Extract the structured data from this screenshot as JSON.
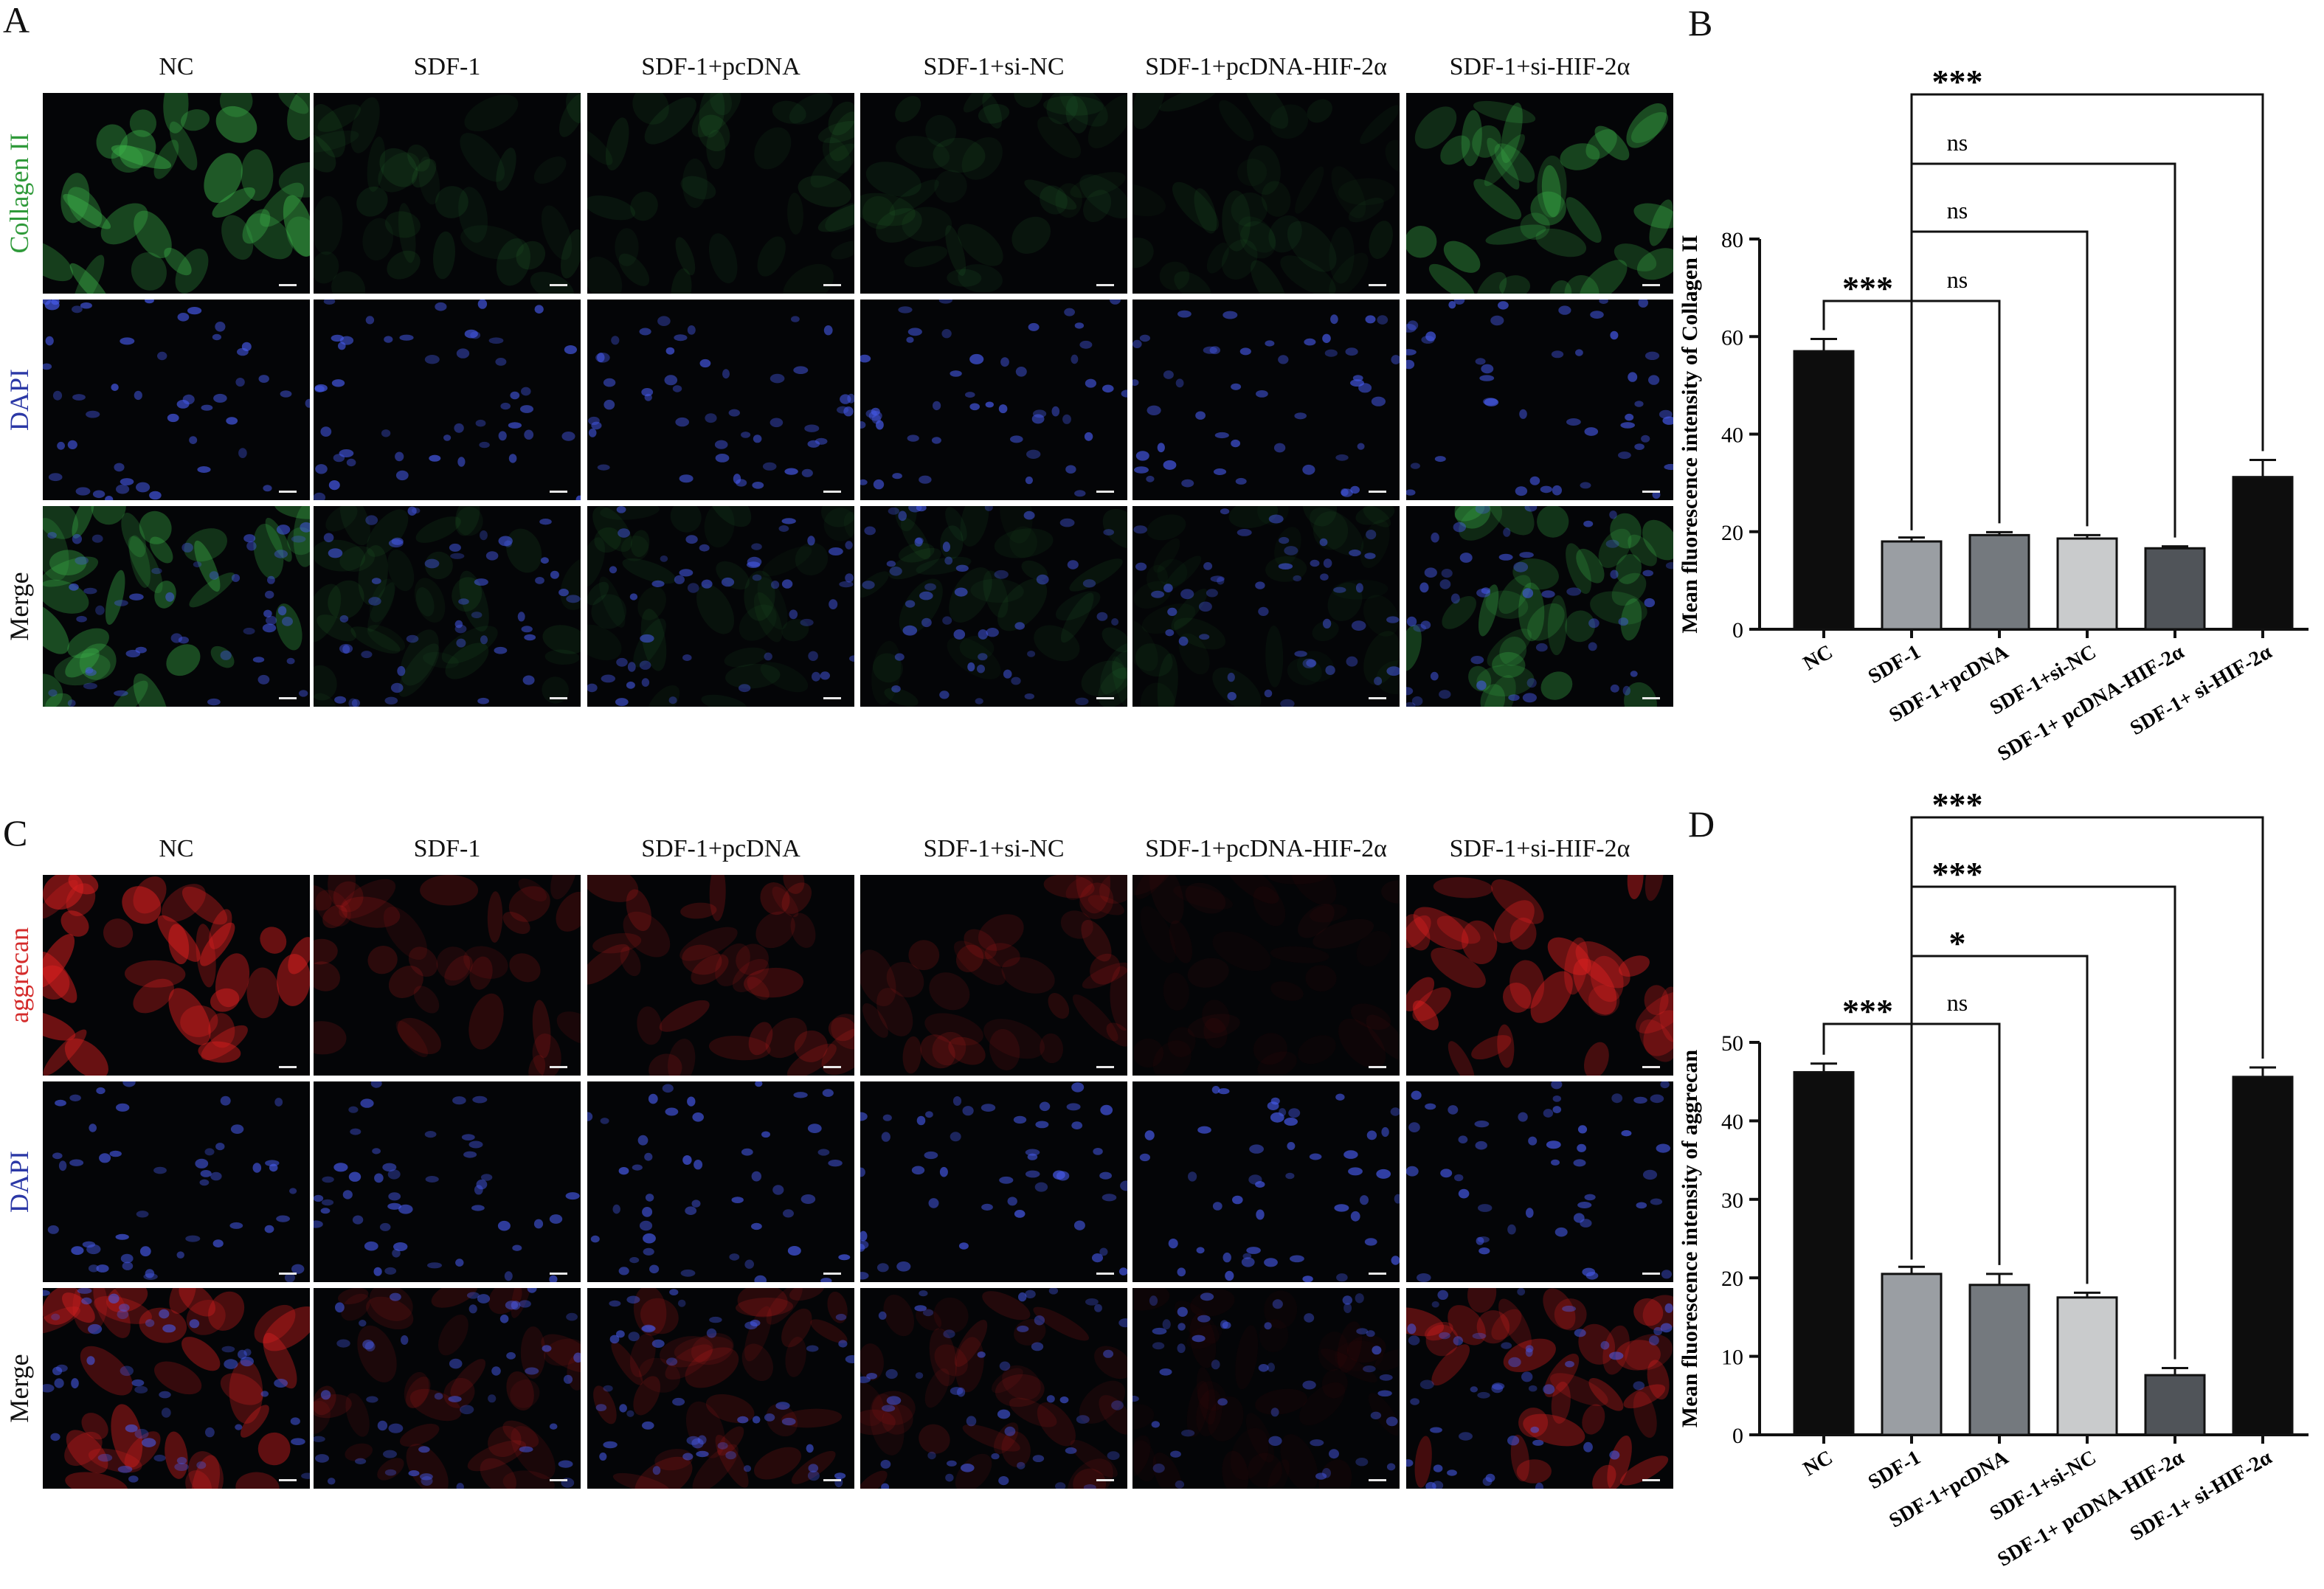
{
  "panels": {
    "A": "A",
    "B": "B",
    "C": "C",
    "D": "D"
  },
  "micrograph_columns": [
    "NC",
    "SDF-1",
    "SDF-1+pcDNA",
    "SDF-1+si-NC",
    "SDF-1+pcDNA-HIF-2α",
    "SDF-1+si-HIF-2α"
  ],
  "micrograph_A": {
    "rows": [
      "Collagen II",
      "DAPI",
      "Merge"
    ],
    "row_colors": [
      "#2f9a3a",
      "#2b38a6",
      "#111111"
    ],
    "marker_color": "#3cb44a",
    "marker_intensity": [
      0.9,
      0.22,
      0.2,
      0.2,
      0.16,
      0.75
    ]
  },
  "micrograph_C": {
    "rows": [
      "aggrecan",
      "DAPI",
      "Merge"
    ],
    "row_colors": [
      "#d42b2b",
      "#2b38a6",
      "#111111"
    ],
    "marker_color": "#e02020",
    "marker_intensity": [
      0.95,
      0.35,
      0.4,
      0.32,
      0.1,
      0.85
    ]
  },
  "colors": {
    "NC": "#0d0d0d",
    "SDF-1": "#9a9ea3",
    "SDF-1+pcDNA": "#74797e",
    "SDF-1+si-NC": "#c9cbcc",
    "SDF-1+ pcDNA-HIF-2α": "#505459",
    "SDF-1+ si-HIF-2α": "#0d0d0d"
  },
  "chart_data": [
    {
      "panel": "B",
      "type": "bar",
      "categories": [
        "NC",
        "SDF-1",
        "SDF-1+pcDNA",
        "SDF-1+si-NC",
        "SDF-1+ pcDNA-HIF-2α",
        "SDF-1+ si-HIF-2α"
      ],
      "values": [
        57,
        18,
        19.3,
        18.6,
        16.6,
        31.2
      ],
      "errors": [
        2.5,
        0.8,
        0.6,
        0.7,
        0.4,
        3.5
      ],
      "ylabel": "Mean fluorescence intensity of Collagen II",
      "ylim": [
        0,
        80
      ],
      "yticks": [
        0,
        20,
        40,
        60,
        80
      ],
      "significance": [
        {
          "from": 0,
          "to": 1,
          "label": "***"
        },
        {
          "from": 1,
          "to": 2,
          "label": "ns"
        },
        {
          "from": 1,
          "to": 3,
          "label": "ns"
        },
        {
          "from": 1,
          "to": 4,
          "label": "ns"
        },
        {
          "from": 1,
          "to": 5,
          "label": "***"
        }
      ]
    },
    {
      "panel": "D",
      "type": "bar",
      "categories": [
        "NC",
        "SDF-1",
        "SDF-1+pcDNA",
        "SDF-1+si-NC",
        "SDF-1+ pcDNA-HIF-2α",
        "SDF-1+ si-HIF-2α"
      ],
      "values": [
        46.2,
        20.5,
        19.1,
        17.5,
        7.6,
        45.6
      ],
      "errors": [
        1.1,
        0.9,
        1.4,
        0.6,
        0.9,
        1.2
      ],
      "ylabel": "Mean fluorescence intensity of aggrecan",
      "ylim": [
        0,
        50
      ],
      "yticks": [
        0,
        10,
        20,
        30,
        40,
        50
      ],
      "significance": [
        {
          "from": 0,
          "to": 1,
          "label": "***"
        },
        {
          "from": 1,
          "to": 2,
          "label": "ns"
        },
        {
          "from": 1,
          "to": 3,
          "label": "*"
        },
        {
          "from": 1,
          "to": 4,
          "label": "***"
        },
        {
          "from": 1,
          "to": 5,
          "label": "***"
        }
      ]
    }
  ]
}
